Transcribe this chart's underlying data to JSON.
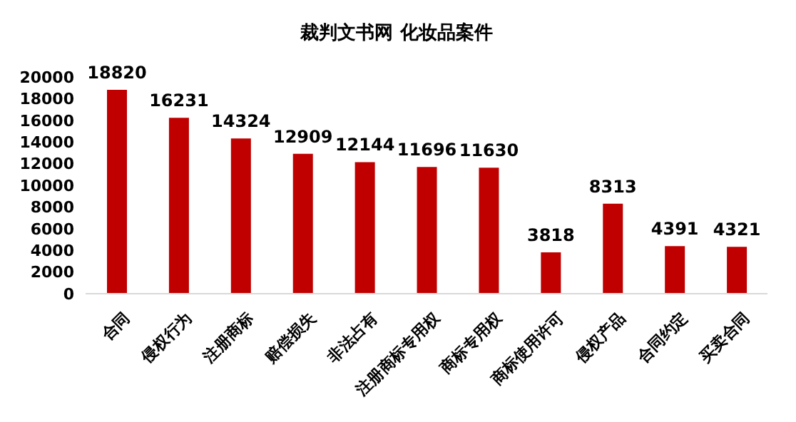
{
  "chart_data": {
    "type": "bar",
    "title": "裁判文书网 化妆品案件",
    "categories": [
      "合同",
      "侵权行为",
      "注册商标",
      "赔偿损失",
      "非法占有",
      "注册商标专用权",
      "商标专用权",
      "商标使用许可",
      "侵权产品",
      "合同约定",
      "买卖合同"
    ],
    "values": [
      18820,
      16231,
      14324,
      12909,
      12144,
      11696,
      11630,
      3818,
      8313,
      4391,
      4321
    ],
    "color": "#c00000",
    "ylim": [
      0,
      20000
    ],
    "yticks": [
      0,
      2000,
      4000,
      6000,
      8000,
      10000,
      12000,
      14000,
      16000,
      18000,
      20000
    ],
    "grid": false,
    "data_labels": true
  }
}
